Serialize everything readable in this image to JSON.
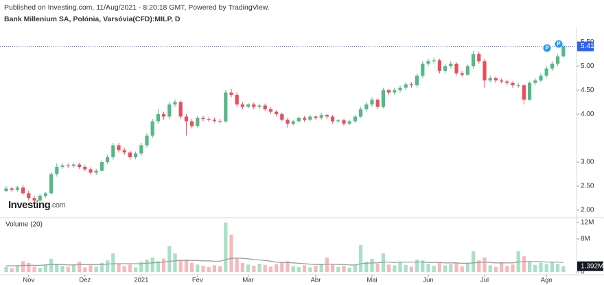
{
  "header": {
    "published": "Published on Investing.com, 11/Aug/2021 - 8:20:18 GMT, Powered by TradingView."
  },
  "logo": {
    "brand": "Investing",
    "suffix": ".com"
  },
  "events": [
    {
      "label": "P"
    },
    {
      "label": "P"
    }
  ],
  "chart_data": [
    {
      "type": "candlestick",
      "title": "Bank Millenium SA, Polónia, Varsóvia(CFD):MILP, D",
      "categories": [
        null,
        null,
        null,
        null,
        "Nov",
        null,
        null,
        null,
        null,
        null,
        null,
        null,
        null,
        null,
        "Dez",
        null,
        null,
        null,
        null,
        null,
        null,
        null,
        null,
        null,
        "2021",
        null,
        null,
        null,
        null,
        null,
        null,
        null,
        null,
        null,
        "Fev",
        null,
        null,
        null,
        null,
        null,
        null,
        null,
        null,
        "Mar",
        null,
        null,
        null,
        null,
        null,
        null,
        null,
        null,
        null,
        null,
        null,
        "Abr",
        null,
        null,
        null,
        null,
        null,
        null,
        null,
        null,
        null,
        "Mai",
        null,
        null,
        null,
        null,
        null,
        null,
        null,
        null,
        null,
        "Jun",
        null,
        null,
        null,
        null,
        null,
        null,
        null,
        null,
        null,
        "Jul",
        null,
        null,
        null,
        null,
        null,
        null,
        null,
        null,
        null,
        null,
        "Ago",
        null,
        null,
        null
      ],
      "open": [
        2.4,
        2.45,
        2.42,
        2.47,
        2.35,
        2.25,
        2.2,
        2.3,
        2.35,
        2.75,
        2.9,
        2.93,
        2.92,
        2.95,
        2.9,
        2.85,
        2.78,
        2.82,
        3.0,
        3.1,
        3.35,
        3.25,
        3.2,
        3.1,
        3.18,
        3.35,
        3.55,
        3.85,
        4.0,
        3.95,
        4.2,
        4.25,
        3.95,
        3.85,
        3.75,
        3.92,
        3.9,
        3.88,
        3.86,
        3.85,
        4.45,
        4.4,
        4.2,
        4.15,
        4.2,
        4.15,
        4.18,
        4.1,
        4.05,
        4.0,
        3.88,
        3.8,
        3.85,
        3.92,
        3.88,
        3.95,
        3.92,
        3.98,
        3.95,
        3.85,
        3.87,
        3.8,
        3.85,
        3.95,
        4.1,
        4.2,
        4.3,
        4.15,
        4.5,
        4.45,
        4.5,
        4.55,
        4.62,
        4.6,
        4.8,
        5.05,
        5.1,
        5.12,
        4.9,
        5.0,
        5.05,
        4.85,
        4.82,
        5.0,
        5.25,
        5.1,
        4.7,
        4.75,
        4.7,
        4.68,
        4.65,
        4.6,
        4.6,
        4.3,
        4.65,
        4.7,
        4.8,
        4.95,
        5.05,
        5.2
      ],
      "high": [
        2.5,
        2.49,
        2.5,
        2.52,
        2.4,
        2.3,
        2.34,
        2.38,
        2.8,
        2.97,
        2.98,
        2.97,
        2.98,
        2.98,
        2.94,
        2.89,
        2.86,
        3.04,
        3.15,
        3.4,
        3.4,
        3.3,
        3.24,
        3.22,
        3.4,
        3.6,
        3.9,
        4.1,
        4.05,
        4.25,
        4.3,
        4.28,
        4.0,
        3.9,
        3.96,
        3.96,
        3.94,
        3.92,
        3.9,
        4.5,
        4.52,
        4.45,
        4.25,
        4.23,
        4.24,
        4.22,
        4.22,
        4.14,
        4.08,
        4.03,
        3.92,
        3.88,
        3.95,
        3.96,
        3.98,
        3.97,
        4.02,
        4.0,
        3.98,
        3.9,
        3.9,
        3.88,
        3.98,
        4.15,
        4.25,
        4.35,
        4.32,
        4.55,
        4.52,
        4.55,
        4.6,
        4.66,
        4.66,
        4.85,
        5.1,
        5.15,
        5.18,
        5.15,
        5.05,
        5.1,
        5.08,
        4.9,
        5.04,
        5.32,
        5.3,
        5.15,
        4.8,
        4.78,
        4.74,
        4.72,
        4.68,
        4.65,
        4.62,
        4.68,
        4.75,
        4.85,
        5.0,
        5.1,
        5.25,
        5.45
      ],
      "low": [
        2.37,
        2.38,
        2.39,
        2.31,
        2.2,
        2.15,
        2.17,
        2.26,
        2.32,
        2.7,
        2.86,
        2.88,
        2.88,
        2.86,
        2.81,
        2.74,
        2.73,
        2.8,
        2.96,
        3.05,
        3.2,
        3.15,
        3.05,
        3.06,
        3.12,
        3.3,
        3.5,
        3.8,
        3.88,
        3.9,
        4.15,
        3.9,
        3.55,
        3.7,
        3.72,
        3.85,
        3.84,
        3.82,
        3.8,
        3.82,
        4.35,
        4.15,
        4.1,
        4.12,
        4.1,
        4.1,
        4.06,
        4.0,
        3.95,
        3.85,
        3.72,
        3.76,
        3.82,
        3.84,
        3.85,
        3.88,
        3.88,
        3.9,
        3.8,
        3.82,
        3.76,
        3.77,
        3.82,
        3.92,
        4.05,
        4.15,
        4.1,
        4.12,
        4.4,
        4.4,
        4.45,
        4.5,
        4.55,
        4.55,
        4.75,
        5.0,
        5.05,
        4.85,
        4.85,
        4.95,
        4.8,
        4.78,
        4.8,
        4.95,
        5.05,
        4.55,
        4.66,
        4.65,
        4.64,
        4.6,
        4.55,
        4.55,
        4.2,
        4.28,
        4.6,
        4.66,
        4.76,
        4.9,
        5.0,
        5.18
      ],
      "close": [
        2.45,
        2.42,
        2.47,
        2.35,
        2.25,
        2.2,
        2.3,
        2.35,
        2.75,
        2.9,
        2.93,
        2.92,
        2.95,
        2.9,
        2.85,
        2.78,
        2.82,
        3.0,
        3.1,
        3.35,
        3.25,
        3.2,
        3.1,
        3.18,
        3.35,
        3.55,
        3.85,
        4.0,
        3.95,
        4.2,
        4.25,
        3.95,
        3.85,
        3.75,
        3.92,
        3.9,
        3.88,
        3.86,
        3.85,
        4.45,
        4.4,
        4.2,
        4.15,
        4.2,
        4.15,
        4.18,
        4.1,
        4.05,
        4.0,
        3.88,
        3.8,
        3.85,
        3.92,
        3.88,
        3.95,
        3.92,
        3.98,
        3.95,
        3.85,
        3.87,
        3.8,
        3.85,
        3.95,
        4.1,
        4.2,
        4.3,
        4.15,
        4.5,
        4.45,
        4.5,
        4.55,
        4.62,
        4.6,
        4.8,
        5.05,
        5.1,
        5.12,
        4.9,
        5.0,
        5.05,
        4.85,
        4.82,
        5.0,
        5.25,
        5.1,
        4.7,
        4.75,
        4.7,
        4.68,
        4.65,
        4.6,
        4.6,
        4.3,
        4.65,
        4.7,
        4.8,
        4.95,
        5.05,
        5.2,
        5.41
      ],
      "up_color": "#53b987",
      "down_color": "#eb4d5c",
      "last_line_color": "#2962ff",
      "ylim": [
        1.87,
        5.59
      ],
      "yticks": [
        {
          "value": 2.0,
          "label": "2.00"
        },
        {
          "value": 2.5,
          "label": "2.50"
        },
        {
          "value": 3.0,
          "label": "3.00"
        },
        {
          "value": 4.0,
          "label": "4.00"
        },
        {
          "value": 4.5,
          "label": "4.50"
        },
        {
          "value": 5.0,
          "label": "5.00"
        },
        {
          "value": 5.5,
          "label": "5.50"
        }
      ]
    },
    {
      "type": "bar",
      "title": "Volume (20)",
      "values": [
        1.2,
        0.9,
        1.5,
        2.6,
        2.2,
        1.3,
        1.0,
        1.8,
        3.2,
        2.0,
        1.5,
        1.2,
        1.8,
        2.5,
        1.1,
        1.6,
        1.3,
        2.2,
        2.8,
        4.5,
        2.0,
        1.4,
        1.8,
        1.1,
        2.5,
        3.0,
        3.5,
        2.6,
        3.2,
        6.3,
        4.5,
        2.8,
        3.0,
        2.2,
        1.8,
        1.5,
        1.2,
        1.6,
        1.4,
        12.0,
        9.0,
        3.5,
        2.2,
        1.8,
        1.5,
        2.0,
        1.7,
        1.3,
        1.9,
        2.3,
        2.6,
        1.4,
        1.2,
        1.6,
        1.1,
        1.5,
        2.0,
        3.5,
        1.8,
        1.2,
        1.5,
        1.0,
        1.8,
        6.5,
        2.5,
        3.2,
        2.0,
        4.5,
        1.8,
        1.6,
        2.4,
        1.7,
        1.3,
        3.0,
        2.8,
        2.0,
        1.5,
        2.2,
        1.6,
        1.9,
        2.1,
        1.4,
        2.0,
        5.0,
        2.8,
        3.5,
        1.6,
        1.2,
        2.4,
        1.5,
        1.8,
        5.0,
        3.8,
        2.6,
        1.7,
        2.2,
        1.9,
        2.5,
        2.0,
        1.392
      ],
      "value_labels": [
        null,
        null,
        null,
        null,
        null,
        null,
        null,
        null,
        null,
        null,
        null,
        null,
        null,
        null,
        null,
        null,
        null,
        null,
        null,
        null,
        null,
        null,
        null,
        null,
        null,
        null,
        null,
        null,
        null,
        null,
        null,
        null,
        null,
        null,
        null,
        null,
        null,
        null,
        null,
        null,
        null,
        null,
        null,
        null,
        null,
        null,
        null,
        null,
        null,
        null,
        null,
        null,
        null,
        null,
        null,
        null,
        null,
        null,
        null,
        null,
        null,
        null,
        null,
        null,
        null,
        null,
        null,
        null,
        null,
        null,
        null,
        null,
        null,
        null,
        null,
        null,
        null,
        null,
        null,
        null,
        null,
        null,
        null,
        null,
        null,
        null,
        null,
        null,
        null,
        null,
        null,
        null,
        null,
        null,
        null,
        null,
        null,
        null,
        null,
        "1.392M"
      ],
      "ma": [
        1.5,
        1.5,
        1.5,
        1.6,
        1.6,
        1.6,
        1.6,
        1.7,
        1.8,
        1.8,
        1.8,
        1.7,
        1.7,
        1.8,
        1.8,
        1.8,
        1.8,
        1.8,
        1.9,
        2.0,
        2.0,
        2.0,
        2.0,
        2.0,
        2.0,
        2.1,
        2.2,
        2.3,
        2.4,
        2.6,
        2.7,
        2.8,
        2.8,
        2.8,
        2.8,
        2.7,
        2.7,
        2.6,
        2.6,
        3.0,
        3.3,
        3.4,
        3.3,
        3.2,
        3.0,
        2.9,
        2.8,
        2.6,
        2.4,
        2.3,
        2.3,
        2.2,
        2.1,
        2.0,
        1.9,
        1.8,
        1.8,
        1.9,
        1.9,
        1.8,
        1.8,
        1.7,
        1.7,
        2.0,
        2.1,
        2.2,
        2.2,
        2.4,
        2.4,
        2.3,
        2.4,
        2.4,
        2.4,
        2.4,
        2.4,
        2.3,
        2.3,
        2.3,
        2.2,
        2.2,
        2.2,
        2.1,
        2.1,
        2.2,
        2.3,
        2.4,
        2.3,
        2.2,
        2.2,
        2.2,
        2.2,
        2.4,
        2.5,
        2.5,
        2.5,
        2.5,
        2.4,
        2.4,
        2.4,
        2.3
      ],
      "up_color": "#a8e0c8",
      "down_color": "#f6b9bc",
      "ma_color": "#9e9e9e",
      "label_color": "#131722",
      "ylim": [
        0,
        13
      ],
      "yticks": [
        0,
        {
          "value": 8,
          "label": "8M"
        },
        {
          "value": 12,
          "label": "12M"
        }
      ]
    }
  ]
}
